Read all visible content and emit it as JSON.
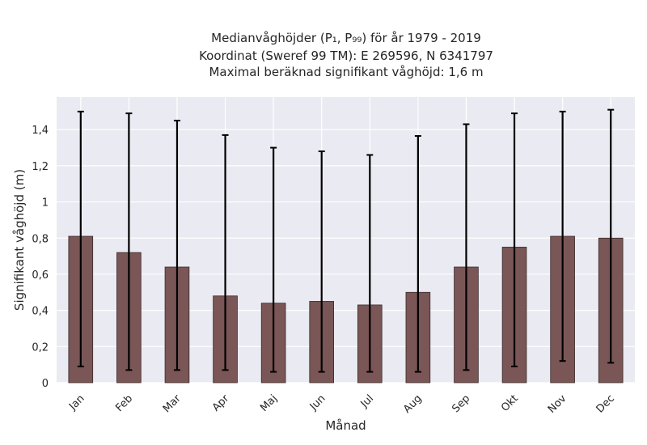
{
  "chart_data": {
    "type": "bar",
    "title_lines": [
      "Medianvåghöjder (P₁, P₉₉) för år 1979 - 2019",
      "Koordinat (Sweref 99 TM): E 269596, N 6341797",
      "Maximal beräknad signifikant våghöjd: 1,6 m"
    ],
    "xlabel": "Månad",
    "ylabel": "Signifikant våghöjd (m)",
    "categories": [
      "Jan",
      "Feb",
      "Mar",
      "Apr",
      "Maj",
      "Jun",
      "Jul",
      "Aug",
      "Sep",
      "Okt",
      "Nov",
      "Dec"
    ],
    "median": [
      0.81,
      0.72,
      0.64,
      0.48,
      0.44,
      0.45,
      0.43,
      0.5,
      0.64,
      0.75,
      0.81,
      0.8
    ],
    "p1": [
      0.09,
      0.07,
      0.07,
      0.07,
      0.06,
      0.06,
      0.06,
      0.06,
      0.07,
      0.09,
      0.12,
      0.11
    ],
    "p99": [
      1.5,
      1.49,
      1.45,
      1.37,
      1.3,
      1.28,
      1.26,
      1.365,
      1.43,
      1.49,
      1.5,
      1.51
    ],
    "ylim": [
      0,
      1.58
    ],
    "yticks": [
      0,
      0.2,
      0.4,
      0.6,
      0.8,
      1,
      1.2,
      1.4
    ],
    "ytick_labels": [
      "0",
      "0,2",
      "0,4",
      "0,6",
      "0,8",
      "1",
      "1,2",
      "1,4"
    ],
    "grid": true,
    "colors": {
      "bar_fill": "#7a5656",
      "bar_edge": "#3a2a2a",
      "error_bar": "#000000",
      "plot_bg": "#eaeaf2",
      "grid": "#ffffff"
    }
  }
}
